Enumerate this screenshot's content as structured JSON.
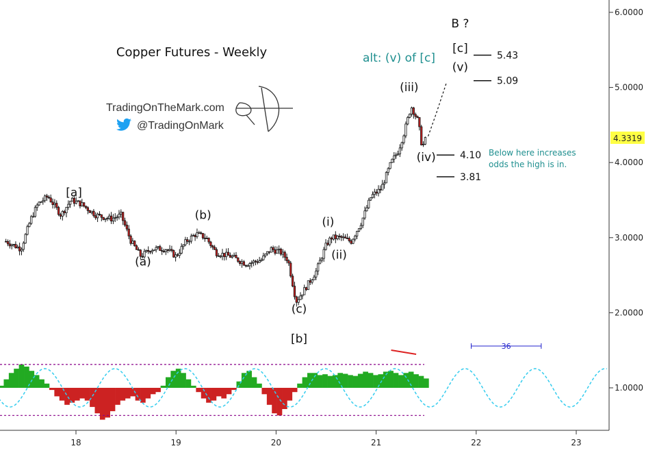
{
  "chart_data": {
    "type": "candlestick",
    "title": "Copper Futures - Weekly",
    "price_axis": {
      "ticks": [
        "6.0000",
        "5.0000",
        "4.0000",
        "3.0000",
        "2.0000",
        "1.0000"
      ],
      "last_price": "4.3319",
      "range": [
        0.4,
        6.2
      ]
    },
    "time_axis": {
      "ticks": [
        "18",
        "19",
        "20",
        "21",
        "22",
        "23"
      ]
    },
    "price_path": [
      [
        "17.30",
        2.95
      ],
      [
        "17.45",
        2.85
      ],
      [
        "17.55",
        3.25
      ],
      [
        "17.62",
        3.45
      ],
      [
        "17.72",
        3.55
      ],
      [
        "17.85",
        3.3
      ],
      [
        "17.95",
        3.5
      ],
      [
        "18.05",
        3.45
      ],
      [
        "18.20",
        3.3
      ],
      [
        "18.35",
        3.25
      ],
      [
        "18.45",
        3.3
      ],
      [
        "18.55",
        2.95
      ],
      [
        "18.65",
        2.75
      ],
      [
        "18.75",
        2.85
      ],
      [
        "18.90",
        2.85
      ],
      [
        "19.00",
        2.75
      ],
      [
        "19.10",
        2.95
      ],
      [
        "19.20",
        3.05
      ],
      [
        "19.30",
        3.0
      ],
      [
        "19.40",
        2.8
      ],
      [
        "19.55",
        2.75
      ],
      [
        "19.70",
        2.65
      ],
      [
        "19.85",
        2.7
      ],
      [
        "19.95",
        2.85
      ],
      [
        "20.05",
        2.8
      ],
      [
        "20.12",
        2.7
      ],
      [
        "20.20",
        2.15
      ],
      [
        "20.28",
        2.3
      ],
      [
        "20.40",
        2.55
      ],
      [
        "20.50",
        2.9
      ],
      [
        "20.55",
        3.0
      ],
      [
        "20.65",
        3.0
      ],
      [
        "20.75",
        2.95
      ],
      [
        "20.85",
        3.2
      ],
      [
        "20.95",
        3.55
      ],
      [
        "21.05",
        3.65
      ],
      [
        "21.15",
        4.0
      ],
      [
        "21.22",
        4.15
      ],
      [
        "21.28",
        4.4
      ],
      [
        "21.35",
        4.75
      ],
      [
        "21.42",
        4.55
      ],
      [
        "21.46",
        4.2
      ],
      [
        "21.50",
        4.33
      ]
    ],
    "waves": [
      {
        "label": "[a]",
        "x": "17.98",
        "y": 3.55
      },
      {
        "label": "(a)",
        "x": "18.67",
        "y": 2.63
      },
      {
        "label": "(b)",
        "x": "19.27",
        "y": 3.25
      },
      {
        "label": "(c)",
        "x": "20.23",
        "y": 2.0
      },
      {
        "label": "[b]",
        "x": "20.23",
        "y": 1.6
      },
      {
        "label": "(i)",
        "x": "20.52",
        "y": 3.16
      },
      {
        "label": "(ii)",
        "x": "20.63",
        "y": 2.72
      },
      {
        "label": "(iii)",
        "x": "21.33",
        "y": 4.95
      },
      {
        "label": "(iv)",
        "x": "21.50",
        "y": 4.02
      },
      {
        "label": "(v)",
        "x": "21.84",
        "y": 5.22
      },
      {
        "label": "[c]",
        "x": "21.84",
        "y": 5.47
      },
      {
        "label": "B ?",
        "x": "21.84",
        "y": 5.8
      }
    ],
    "alt_count": "alt: (v) of [c]",
    "targets": [
      {
        "label": "5.43",
        "value": 5.43
      },
      {
        "label": "5.09",
        "value": 5.09
      },
      {
        "label": "4.10",
        "value": 4.1
      },
      {
        "label": "3.81",
        "value": 3.81
      }
    ],
    "note": [
      "Below here increases",
      "odds the high is in."
    ],
    "projection": [
      [
        "21.52",
        4.35
      ],
      [
        "21.60",
        4.65
      ],
      [
        "21.70",
        5.05
      ]
    ],
    "oscillator": {
      "values": [
        0.18,
        0.1,
        -0.05,
        -0.15,
        -0.1,
        0.05,
        0.2,
        0.35,
        0.45,
        0.55,
        0.5,
        0.4,
        0.3,
        0.2,
        0.1,
        -0.05,
        -0.2,
        -0.3,
        -0.4,
        -0.35,
        -0.3,
        -0.25,
        -0.3,
        -0.45,
        -0.6,
        -0.75,
        -0.7,
        -0.55,
        -0.4,
        -0.3,
        -0.25,
        -0.2,
        -0.3,
        -0.35,
        -0.25,
        -0.15,
        -0.1,
        0.05,
        0.25,
        0.4,
        0.45,
        0.35,
        0.2,
        0.05,
        -0.1,
        -0.25,
        -0.35,
        -0.3,
        -0.2,
        -0.25,
        -0.15,
        -0.05,
        0.15,
        0.35,
        0.4,
        0.25,
        0.1,
        -0.15,
        -0.4,
        -0.6,
        -0.65,
        -0.5,
        -0.3,
        -0.1,
        0.1,
        0.25,
        0.35,
        0.35,
        0.3,
        0.32,
        0.28,
        0.3,
        0.35,
        0.33,
        0.3,
        0.28,
        0.33,
        0.38,
        0.35,
        0.3,
        0.32,
        0.38,
        0.4,
        0.35,
        0.3,
        0.35,
        0.38,
        0.32,
        0.28,
        0.22
      ],
      "x_range": [
        "17.00",
        "21.50"
      ],
      "band": [
        -0.65,
        0.55
      ]
    },
    "cycle": {
      "label": "36",
      "x_range": [
        "21.95",
        "22.65"
      ],
      "value": 1.56
    },
    "cycle_wave": {
      "x_range": [
        "17.00",
        "23.50"
      ],
      "period": 0.7
    },
    "red_mark": {
      "x_range": [
        "21.15",
        "21.40"
      ],
      "values": [
        1.5,
        1.45
      ]
    },
    "colors": {
      "up": "#ffffff",
      "down": "#cc2222",
      "osc_up": "#22aa22",
      "osc_down": "#cc2222",
      "cycle": "#33ccee",
      "band": "#880088",
      "text_teal": "#1f8f8f"
    }
  },
  "watermark": {
    "site": "TradingOnTheMark.com",
    "handle": "@TradingOnMark"
  }
}
